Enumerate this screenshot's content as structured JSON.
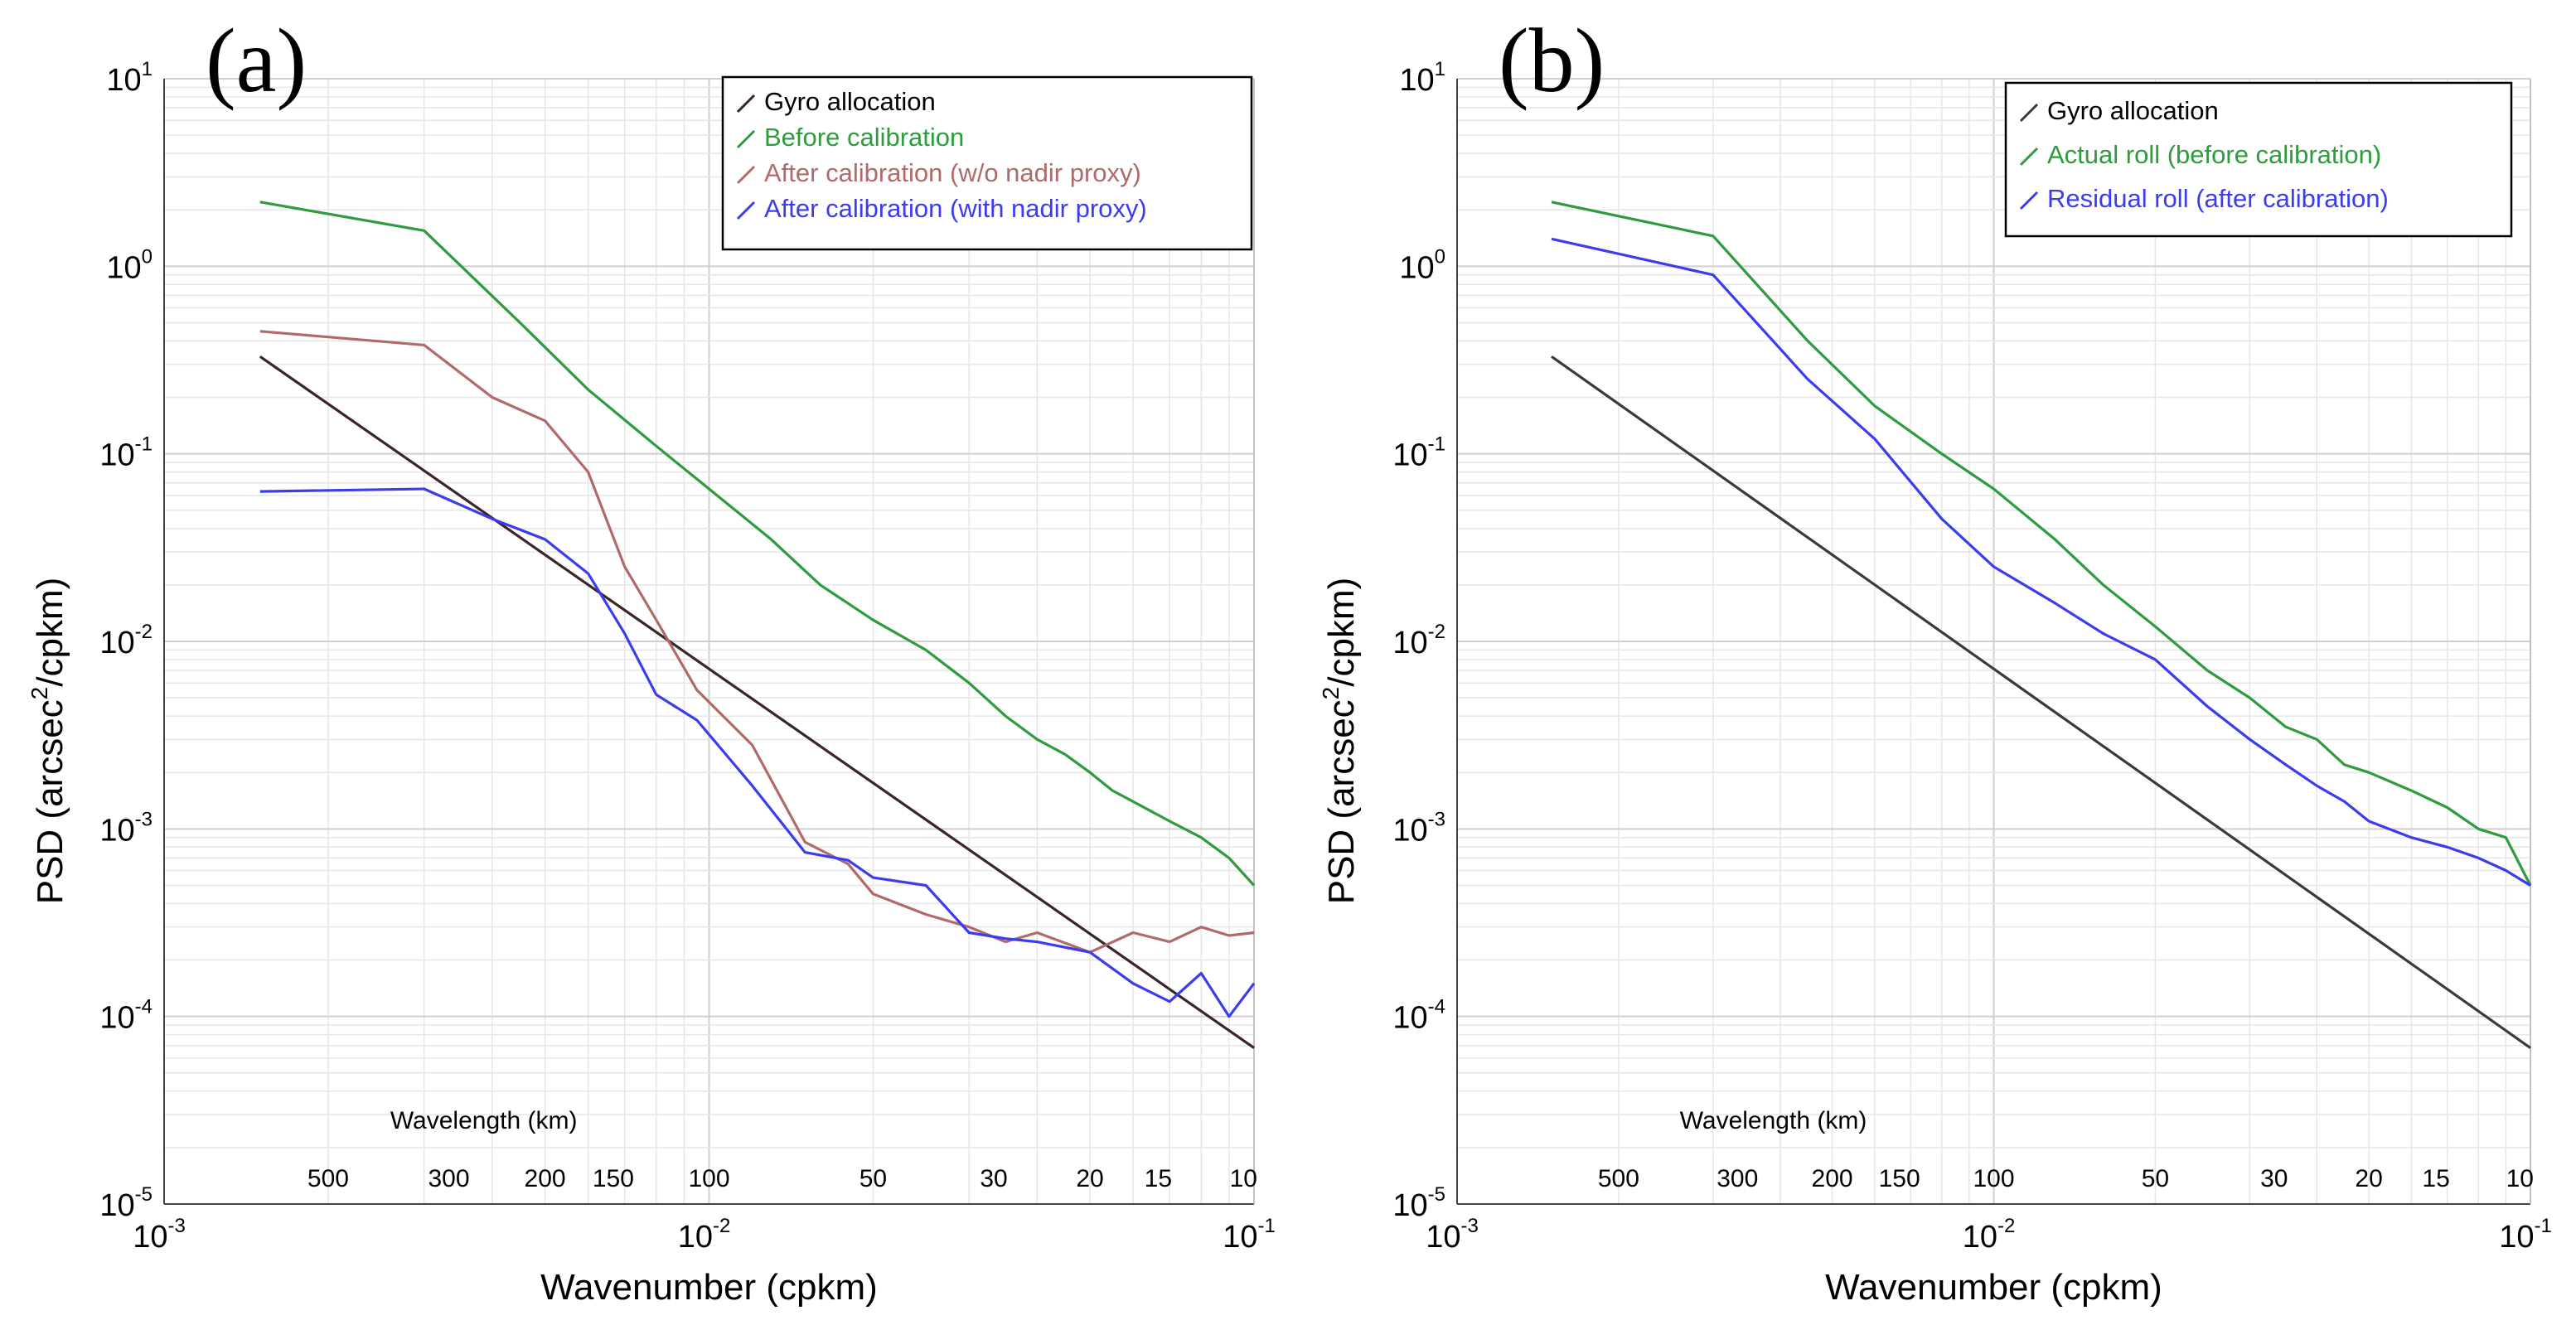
{
  "chart_data": [
    {
      "type": "line",
      "panel_label": "(a)",
      "xscale": "log",
      "yscale": "log",
      "xlim": [
        0.001,
        0.1
      ],
      "ylim": [
        1e-05,
        10
      ],
      "grid": true,
      "xlabel": "Wavenumber (cpkm)",
      "ylabel_main": "PSD (arcsec",
      "ylabel_sup": "2",
      "ylabel_rest": "/cpkm)",
      "xticks": [
        {
          "value": 0.001,
          "base": "10",
          "exp": "-3"
        },
        {
          "value": 0.01,
          "base": "10",
          "exp": "-2"
        },
        {
          "value": 0.1,
          "base": "10",
          "exp": "-1"
        }
      ],
      "yticks": [
        {
          "value": 1e-05,
          "base": "10",
          "exp": "-5"
        },
        {
          "value": 0.0001,
          "base": "10",
          "exp": "-4"
        },
        {
          "value": 0.001,
          "base": "10",
          "exp": "-3"
        },
        {
          "value": 0.01,
          "base": "10",
          "exp": "-2"
        },
        {
          "value": 0.1,
          "base": "10",
          "exp": "-1"
        },
        {
          "value": 1,
          "base": "10",
          "exp": "0"
        },
        {
          "value": 10,
          "base": "10",
          "exp": "1"
        }
      ],
      "wavelength_title": "Wavelength (km)",
      "wavelength_labels": [
        {
          "text": "500",
          "k": 0.002
        },
        {
          "text": "300",
          "k": 0.00333
        },
        {
          "text": "200",
          "k": 0.005
        },
        {
          "text": "150",
          "k": 0.00667
        },
        {
          "text": "100",
          "k": 0.01
        },
        {
          "text": "50",
          "k": 0.02
        },
        {
          "text": "30",
          "k": 0.0333
        },
        {
          "text": "20",
          "k": 0.05
        },
        {
          "text": "15",
          "k": 0.0667
        },
        {
          "text": "10",
          "k": 0.1
        }
      ],
      "legend_position": "top-right",
      "series": [
        {
          "name": "Gyro allocation",
          "color": "#3a2626",
          "x": [
            0.0015,
            0.1
          ],
          "y": [
            0.33,
            6.8e-05
          ]
        },
        {
          "name": "Before calibration",
          "color": "#2e9b3e",
          "x": [
            0.0015,
            0.003,
            0.0045,
            0.006,
            0.008,
            0.01,
            0.013,
            0.016,
            0.02,
            0.025,
            0.03,
            0.035,
            0.04,
            0.045,
            0.05,
            0.055,
            0.06,
            0.07,
            0.08,
            0.09,
            0.1
          ],
          "y": [
            2.2,
            1.55,
            0.5,
            0.22,
            0.11,
            0.065,
            0.035,
            0.02,
            0.013,
            0.009,
            0.006,
            0.004,
            0.003,
            0.0025,
            0.002,
            0.0016,
            0.0014,
            0.0011,
            0.0009,
            0.0007,
            0.0005
          ]
        },
        {
          "name": "After calibration (w/o nadir proxy)",
          "color": "#b06a6a",
          "x": [
            0.0015,
            0.003,
            0.004,
            0.005,
            0.006,
            0.007,
            0.008,
            0.0095,
            0.012,
            0.015,
            0.018,
            0.02,
            0.025,
            0.03,
            0.035,
            0.04,
            0.05,
            0.06,
            0.07,
            0.08,
            0.09,
            0.1
          ],
          "y": [
            0.45,
            0.38,
            0.2,
            0.15,
            0.08,
            0.025,
            0.013,
            0.0055,
            0.0028,
            0.00085,
            0.00065,
            0.00045,
            0.00035,
            0.0003,
            0.00025,
            0.00028,
            0.00022,
            0.00028,
            0.00025,
            0.0003,
            0.00027,
            0.00028
          ]
        },
        {
          "name": "After calibration (with nadir proxy)",
          "color": "#3b3bf0",
          "x": [
            0.0015,
            0.003,
            0.004,
            0.005,
            0.006,
            0.007,
            0.008,
            0.0095,
            0.012,
            0.015,
            0.018,
            0.02,
            0.025,
            0.03,
            0.035,
            0.04,
            0.05,
            0.06,
            0.07,
            0.08,
            0.09,
            0.1
          ],
          "y": [
            0.063,
            0.065,
            0.045,
            0.035,
            0.023,
            0.011,
            0.0052,
            0.0038,
            0.0017,
            0.00075,
            0.00068,
            0.00055,
            0.0005,
            0.00028,
            0.00026,
            0.00025,
            0.00022,
            0.00015,
            0.00012,
            0.00017,
            0.0001,
            0.00015
          ]
        }
      ]
    },
    {
      "type": "line",
      "panel_label": "(b)",
      "xscale": "log",
      "yscale": "log",
      "xlim": [
        0.001,
        0.1
      ],
      "ylim": [
        1e-05,
        10
      ],
      "grid": true,
      "xlabel": "Wavenumber (cpkm)",
      "ylabel_main": "PSD (arcsec",
      "ylabel_sup": "2",
      "ylabel_rest": "/cpkm)",
      "xticks": [
        {
          "value": 0.001,
          "base": "10",
          "exp": "-3"
        },
        {
          "value": 0.01,
          "base": "10",
          "exp": "-2"
        },
        {
          "value": 0.1,
          "base": "10",
          "exp": "-1"
        }
      ],
      "yticks": [
        {
          "value": 1e-05,
          "base": "10",
          "exp": "-5"
        },
        {
          "value": 0.0001,
          "base": "10",
          "exp": "-4"
        },
        {
          "value": 0.001,
          "base": "10",
          "exp": "-3"
        },
        {
          "value": 0.01,
          "base": "10",
          "exp": "-2"
        },
        {
          "value": 0.1,
          "base": "10",
          "exp": "-1"
        },
        {
          "value": 1,
          "base": "10",
          "exp": "0"
        },
        {
          "value": 10,
          "base": "10",
          "exp": "1"
        }
      ],
      "wavelength_title": "Wavelength (km)",
      "wavelength_labels": [
        {
          "text": "500",
          "k": 0.002
        },
        {
          "text": "300",
          "k": 0.00333
        },
        {
          "text": "200",
          "k": 0.005
        },
        {
          "text": "150",
          "k": 0.00667
        },
        {
          "text": "100",
          "k": 0.01
        },
        {
          "text": "50",
          "k": 0.02
        },
        {
          "text": "30",
          "k": 0.0333
        },
        {
          "text": "20",
          "k": 0.05
        },
        {
          "text": "15",
          "k": 0.0667
        },
        {
          "text": "10",
          "k": 0.1
        }
      ],
      "legend_position": "top-right",
      "series": [
        {
          "name": "Gyro allocation",
          "color": "#3a3a3a",
          "x": [
            0.0015,
            0.1
          ],
          "y": [
            0.33,
            6.8e-05
          ]
        },
        {
          "name": "Actual roll (before calibration)",
          "color": "#2e9b3e",
          "x": [
            0.0015,
            0.003,
            0.0045,
            0.006,
            0.008,
            0.01,
            0.013,
            0.016,
            0.02,
            0.025,
            0.03,
            0.035,
            0.04,
            0.045,
            0.05,
            0.06,
            0.07,
            0.08,
            0.09,
            0.1
          ],
          "y": [
            2.2,
            1.45,
            0.4,
            0.18,
            0.1,
            0.065,
            0.035,
            0.02,
            0.012,
            0.007,
            0.005,
            0.0035,
            0.003,
            0.0022,
            0.002,
            0.0016,
            0.0013,
            0.001,
            0.0009,
            0.0005
          ]
        },
        {
          "name": "Residual roll (after calibration)",
          "color": "#3b3bf0",
          "x": [
            0.0015,
            0.003,
            0.0045,
            0.006,
            0.008,
            0.01,
            0.013,
            0.016,
            0.02,
            0.025,
            0.03,
            0.035,
            0.04,
            0.045,
            0.05,
            0.06,
            0.07,
            0.08,
            0.09,
            0.1
          ],
          "y": [
            1.4,
            0.9,
            0.25,
            0.12,
            0.045,
            0.025,
            0.016,
            0.011,
            0.008,
            0.0045,
            0.003,
            0.0022,
            0.0017,
            0.0014,
            0.0011,
            0.0009,
            0.0008,
            0.0007,
            0.0006,
            0.0005
          ]
        }
      ]
    }
  ]
}
